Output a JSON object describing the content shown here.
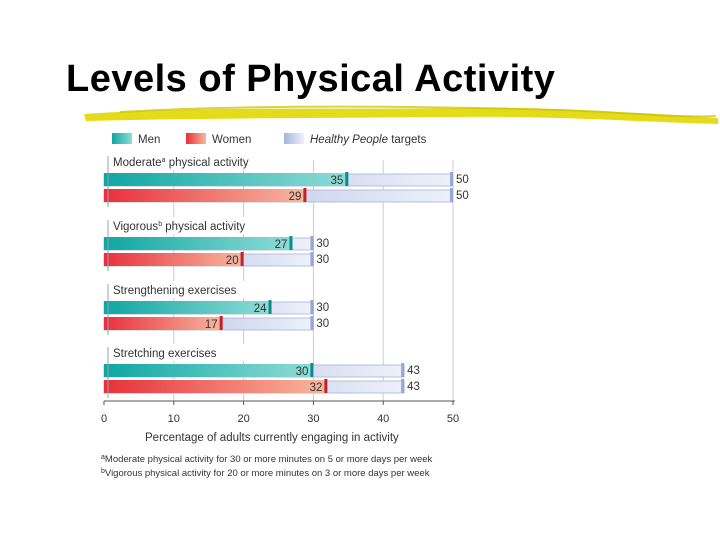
{
  "title": "Levels of Physical Activity",
  "colors": {
    "men": "#2bb9b5",
    "women": "#ec4a4a",
    "target": "#c8cfe8",
    "brush": "#d9d100"
  },
  "chart_data": {
    "type": "bar",
    "orientation": "horizontal",
    "categories": [
      "Moderate physical activity",
      "Vigorous physical activity",
      "Strengthening exercises",
      "Stretching exercises"
    ],
    "category_labels": [
      {
        "text": "Moderate",
        "sup": "a",
        "rest": " physical activity"
      },
      {
        "text": "Vigorous",
        "sup": "b",
        "rest": " physical activity"
      },
      {
        "text": "Strengthening exercises",
        "sup": "",
        "rest": ""
      },
      {
        "text": "Stretching exercises",
        "sup": "",
        "rest": ""
      }
    ],
    "series": [
      {
        "name": "Men",
        "values": [
          35,
          27,
          24,
          30
        ],
        "targets": [
          50,
          30,
          30,
          43
        ]
      },
      {
        "name": "Women",
        "values": [
          29,
          20,
          17,
          32
        ],
        "targets": [
          50,
          30,
          30,
          43
        ]
      }
    ],
    "target_series_name": "Healthy People targets",
    "legend": {
      "men": "Men",
      "women": "Women",
      "target_italic": "Healthy People",
      "target_rest": " targets"
    },
    "xlim": [
      0,
      50
    ],
    "xticks": [
      0,
      10,
      20,
      30,
      40,
      50
    ],
    "xlabel": "Percentage of adults currently engaging in activity",
    "legend_position": "top",
    "footnotes": [
      {
        "sup": "a",
        "text": "Moderate physical activity for 30 or more minutes on 5 or more days per week"
      },
      {
        "sup": "b",
        "text": "Vigorous physical activity for 20 or more minutes on 3 or more days per week"
      }
    ]
  }
}
